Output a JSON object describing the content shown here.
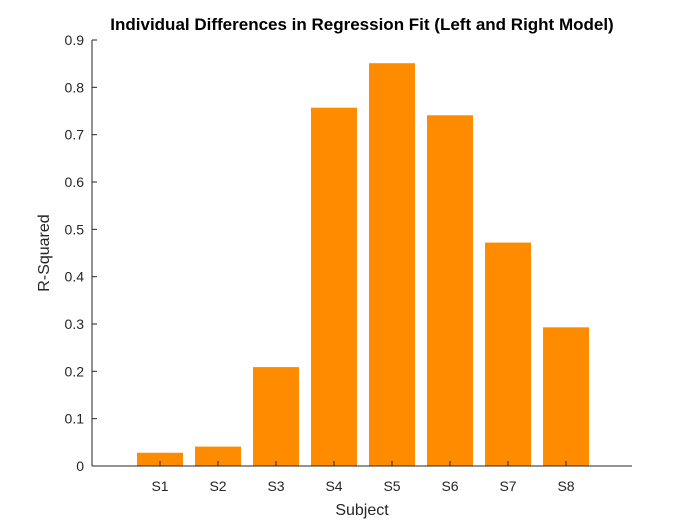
{
  "chart_data": {
    "type": "bar",
    "title": "Individual Differences in Regression Fit (Left and Right Model)",
    "xlabel": "Subject",
    "ylabel": "R-Squared",
    "categories": [
      "S1",
      "S2",
      "S3",
      "S4",
      "S5",
      "S6",
      "S7",
      "S8"
    ],
    "values": [
      0.028,
      0.041,
      0.209,
      0.757,
      0.851,
      0.741,
      0.472,
      0.293
    ],
    "ylim": [
      0,
      0.9
    ],
    "yticks": [
      0,
      0.1,
      0.2,
      0.3,
      0.4,
      0.5,
      0.6,
      0.7,
      0.8,
      0.9
    ],
    "ytick_labels": [
      "0",
      "0.1",
      "0.2",
      "0.3",
      "0.4",
      "0.5",
      "0.6",
      "0.7",
      "0.8",
      "0.9"
    ],
    "grid": false,
    "legend": "none",
    "bar_color": "#FF8C00"
  }
}
